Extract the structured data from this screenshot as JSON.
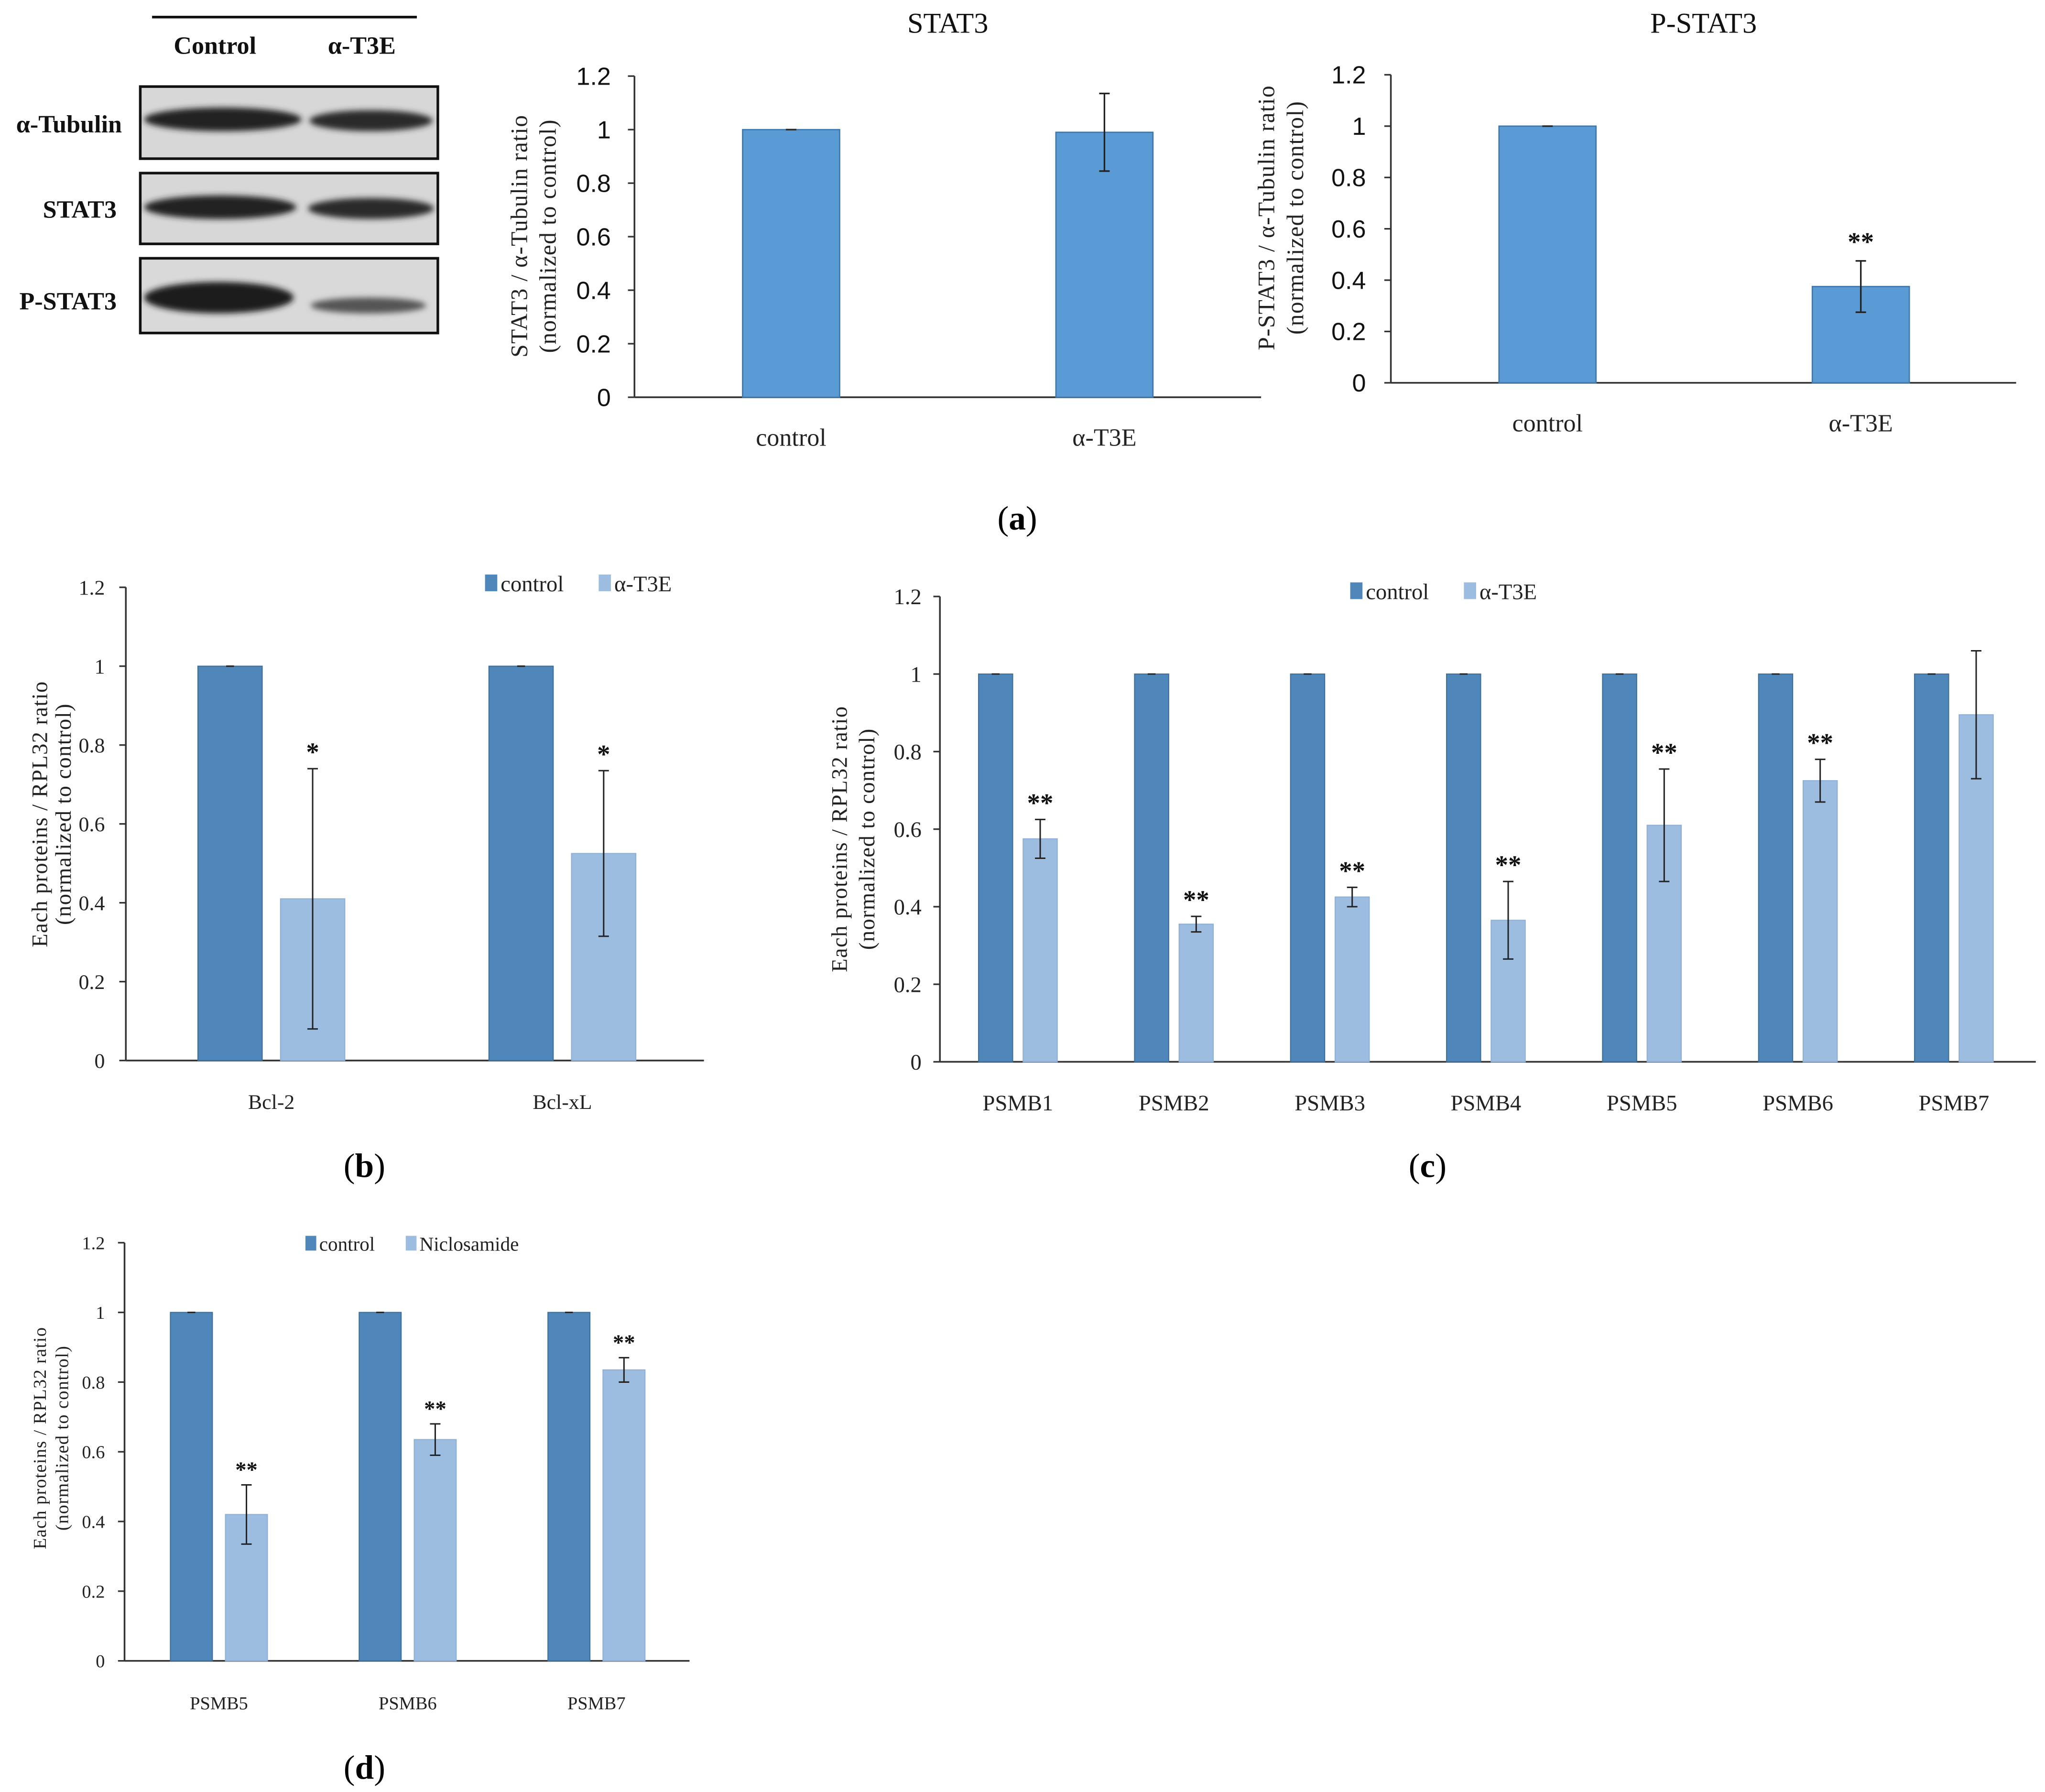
{
  "figure": {
    "panel_labels": [
      "a",
      "b",
      "c",
      "d"
    ]
  },
  "blot": {
    "header": [
      "Control",
      "α-T3E"
    ],
    "rows": [
      "α-Tubulin",
      "STAT3",
      "P-STAT3"
    ]
  },
  "colors": {
    "bar_single": "#5b9bd5",
    "bar_control": "#4f87bb",
    "bar_treat": "#9dbde0",
    "axis": "#333333"
  },
  "chart_data": [
    {
      "id": "a1",
      "type": "bar",
      "title": "STAT3",
      "ylabel": "STAT3 / α-Tubulin ratio",
      "ylabel2": "(normalized to control)",
      "categories": [
        "control",
        "α-T3E"
      ],
      "values": [
        1.0,
        0.99
      ],
      "errors": [
        0.0,
        0.145
      ],
      "sig": [
        "",
        ""
      ],
      "ylim": [
        0,
        1.2
      ],
      "yticks": [
        "0",
        "0.2",
        "0.4",
        "0.6",
        "0.8",
        "1",
        "1.2"
      ]
    },
    {
      "id": "a2",
      "type": "bar",
      "title": "P-STAT3",
      "ylabel": "P-STAT3 / α-Tubulin ratio",
      "ylabel2": "(normalized to control)",
      "categories": [
        "control",
        "α-T3E"
      ],
      "values": [
        1.0,
        0.375
      ],
      "errors": [
        0.0,
        0.1
      ],
      "sig": [
        "",
        "**"
      ],
      "ylim": [
        0,
        1.2
      ],
      "yticks": [
        "0",
        "0.2",
        "0.4",
        "0.6",
        "0.8",
        "1",
        "1.2"
      ]
    },
    {
      "id": "b",
      "type": "bar",
      "ylabel": "Each proteins / RPL32 ratio",
      "ylabel2": "(normalized to control)",
      "categories": [
        "Bcl-2",
        "Bcl-xL"
      ],
      "series": [
        {
          "name": "control",
          "values": [
            1.0,
            1.0
          ],
          "errors": [
            0,
            0
          ],
          "sig": [
            "",
            ""
          ]
        },
        {
          "name": "α-T3E",
          "values": [
            0.41,
            0.525
          ],
          "errors": [
            0.33,
            0.21
          ],
          "sig": [
            "*",
            "*"
          ]
        }
      ],
      "ylim": [
        0,
        1.2
      ],
      "yticks": [
        "0",
        "0.2",
        "0.4",
        "0.6",
        "0.8",
        "1",
        "1.2"
      ]
    },
    {
      "id": "c",
      "type": "bar",
      "ylabel": "Each proteins / RPL32 ratio",
      "ylabel2": "(normalized to control)",
      "categories": [
        "PSMB1",
        "PSMB2",
        "PSMB3",
        "PSMB4",
        "PSMB5",
        "PSMB6",
        "PSMB7"
      ],
      "series": [
        {
          "name": "control",
          "values": [
            1,
            1,
            1,
            1,
            1,
            1,
            1
          ],
          "errors": [
            0,
            0,
            0,
            0,
            0,
            0,
            0
          ],
          "sig": [
            "",
            "",
            "",
            "",
            "",
            "",
            ""
          ]
        },
        {
          "name": "α-T3E",
          "values": [
            0.575,
            0.355,
            0.425,
            0.365,
            0.61,
            0.725,
            0.895
          ],
          "errors": [
            0.05,
            0.02,
            0.025,
            0.1,
            0.145,
            0.055,
            0.165
          ],
          "sig": [
            "**",
            "**",
            "**",
            "**",
            "**",
            "**",
            ""
          ]
        }
      ],
      "ylim": [
        0,
        1.2
      ],
      "yticks": [
        "0",
        "0.2",
        "0.4",
        "0.6",
        "0.8",
        "1",
        "1.2"
      ]
    },
    {
      "id": "d",
      "type": "bar",
      "ylabel": "Each proteins / RPL32 ratio",
      "ylabel2": "(normalized to control)",
      "categories": [
        "PSMB5",
        "PSMB6",
        "PSMB7"
      ],
      "series": [
        {
          "name": "control",
          "values": [
            1,
            1,
            1
          ],
          "errors": [
            0,
            0,
            0
          ],
          "sig": [
            "",
            "",
            ""
          ]
        },
        {
          "name": "Niclosamide",
          "values": [
            0.42,
            0.635,
            0.835
          ],
          "errors": [
            0.085,
            0.045,
            0.035
          ],
          "sig": [
            "**",
            "**",
            "**"
          ]
        }
      ],
      "ylim": [
        0,
        1.2
      ],
      "yticks": [
        "0",
        "0.2",
        "0.4",
        "0.6",
        "0.8",
        "1",
        "1.2"
      ]
    }
  ]
}
